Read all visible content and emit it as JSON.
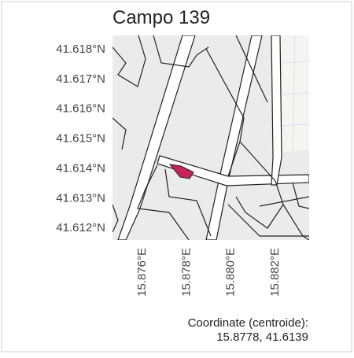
{
  "title": "Campo 139",
  "map": {
    "xlim": [
      15.87469,
      15.88356
    ],
    "ylim": [
      41.61158,
      41.61845
    ],
    "xticks": [
      {
        "value": 15.876,
        "label": "15.876°E"
      },
      {
        "value": 15.878,
        "label": "15.878°E"
      },
      {
        "value": 15.88,
        "label": "15.880°E"
      },
      {
        "value": 15.882,
        "label": "15.882°E"
      }
    ],
    "yticks": [
      {
        "value": 41.618,
        "label": "41.618°N"
      },
      {
        "value": 41.617,
        "label": "41.617°N"
      },
      {
        "value": 41.616,
        "label": "41.616°N"
      },
      {
        "value": 41.615,
        "label": "41.615°N"
      },
      {
        "value": 41.614,
        "label": "41.614°N"
      },
      {
        "value": 41.613,
        "label": "41.613°N"
      },
      {
        "value": 41.612,
        "label": "41.612°N"
      }
    ]
  },
  "caption": {
    "line1": "Coordinate (centroide):",
    "line2": "15.8778, 41.6139"
  }
}
